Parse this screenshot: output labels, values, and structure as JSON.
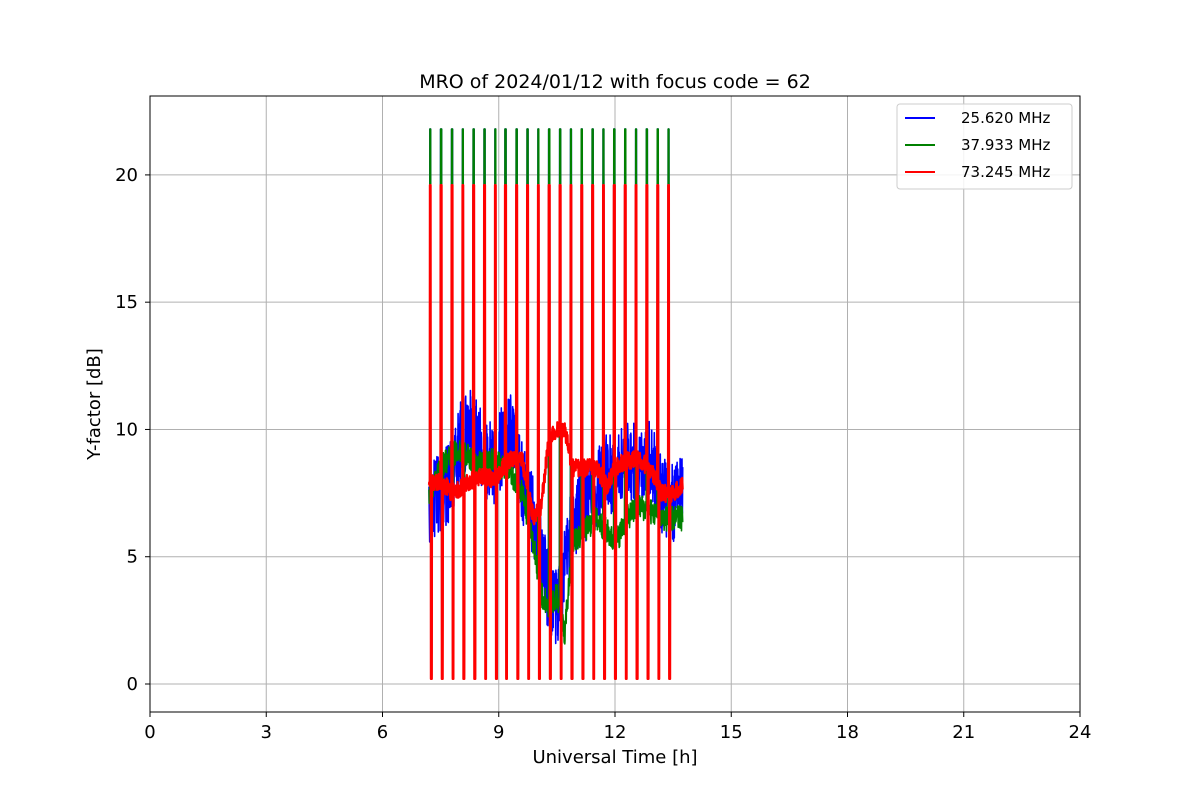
{
  "chart_data": {
    "type": "line",
    "title": "MRO of 2024/01/12 with focus code = 62",
    "xlabel": "Universal Time [h]",
    "ylabel": "Y-factor [dB]",
    "xlim": [
      0,
      24
    ],
    "ylim": [
      -1.1,
      23.1
    ],
    "xticks": [
      0,
      3,
      6,
      9,
      12,
      15,
      18,
      21,
      24
    ],
    "xtick_labels": [
      "0",
      "3",
      "6",
      "9",
      "12",
      "15",
      "18",
      "21",
      "24"
    ],
    "yticks": [
      0,
      5,
      10,
      15,
      20
    ],
    "ytick_labels": [
      "0",
      "5",
      "10",
      "15",
      "20"
    ],
    "grid": true,
    "legend_position": "top-right",
    "x_start": 7.2,
    "x_end": 13.75,
    "calibration_spike_times": [
      7.22,
      7.5,
      7.78,
      8.06,
      8.34,
      8.62,
      8.9,
      9.16,
      9.45,
      9.73,
      10.01,
      10.29,
      10.57,
      10.85,
      11.13,
      11.41,
      11.69,
      11.97,
      12.25,
      12.53,
      12.81,
      13.09,
      13.37
    ],
    "series": [
      {
        "name": "25.620 MHz",
        "color": "#0000ff",
        "spike_high": 21.8,
        "spike_low": 1.2,
        "baseline": {
          "x": [
            7.2,
            7.5,
            7.8,
            8.0,
            8.3,
            8.6,
            8.9,
            9.1,
            9.3,
            9.6,
            9.9,
            10.1,
            10.3,
            10.5,
            10.7,
            10.9,
            11.2,
            11.5,
            11.8,
            12.0,
            12.3,
            12.6,
            12.9,
            13.2,
            13.5,
            13.75
          ],
          "y": [
            7.0,
            7.5,
            8.0,
            9.5,
            10.0,
            9.0,
            8.5,
            9.5,
            10.0,
            8.0,
            6.5,
            5.0,
            3.5,
            3.0,
            4.5,
            6.5,
            7.0,
            7.5,
            8.5,
            8.0,
            9.0,
            8.5,
            9.0,
            7.5,
            7.0,
            8.0
          ]
        },
        "noise": 1.6
      },
      {
        "name": "37.933 MHz",
        "color": "#008000",
        "spike_high": 21.8,
        "spike_low": 0.3,
        "baseline": {
          "x": [
            7.2,
            7.5,
            7.8,
            8.0,
            8.3,
            8.6,
            8.9,
            9.1,
            9.3,
            9.6,
            9.9,
            10.1,
            10.3,
            10.5,
            10.7,
            10.9,
            11.2,
            11.5,
            11.8,
            12.0,
            12.3,
            12.6,
            12.9,
            13.2,
            13.5,
            13.75
          ],
          "y": [
            7.5,
            8.5,
            9.0,
            9.2,
            8.8,
            8.6,
            8.8,
            8.5,
            8.3,
            7.5,
            5.5,
            3.5,
            3.0,
            3.5,
            2.0,
            5.5,
            6.0,
            6.5,
            6.0,
            5.5,
            6.5,
            7.0,
            6.8,
            6.5,
            6.5,
            6.5
          ]
        },
        "noise": 0.5
      },
      {
        "name": "73.245 MHz",
        "color": "#ff0000",
        "spike_high": 19.6,
        "spike_low": 0.2,
        "baseline": {
          "x": [
            7.2,
            7.5,
            7.8,
            8.0,
            8.3,
            8.6,
            8.9,
            9.1,
            9.3,
            9.6,
            9.9,
            10.1,
            10.3,
            10.5,
            10.7,
            10.9,
            11.2,
            11.5,
            11.8,
            12.0,
            12.3,
            12.6,
            12.9,
            13.2,
            13.5,
            13.75
          ],
          "y": [
            7.8,
            8.0,
            7.5,
            7.7,
            8.0,
            8.2,
            8.0,
            8.5,
            8.8,
            8.8,
            6.5,
            7.0,
            9.8,
            10.0,
            10.0,
            8.5,
            8.5,
            8.5,
            7.8,
            8.5,
            8.8,
            8.8,
            8.5,
            7.5,
            7.5,
            7.8
          ]
        },
        "noise": 0.35
      }
    ]
  }
}
